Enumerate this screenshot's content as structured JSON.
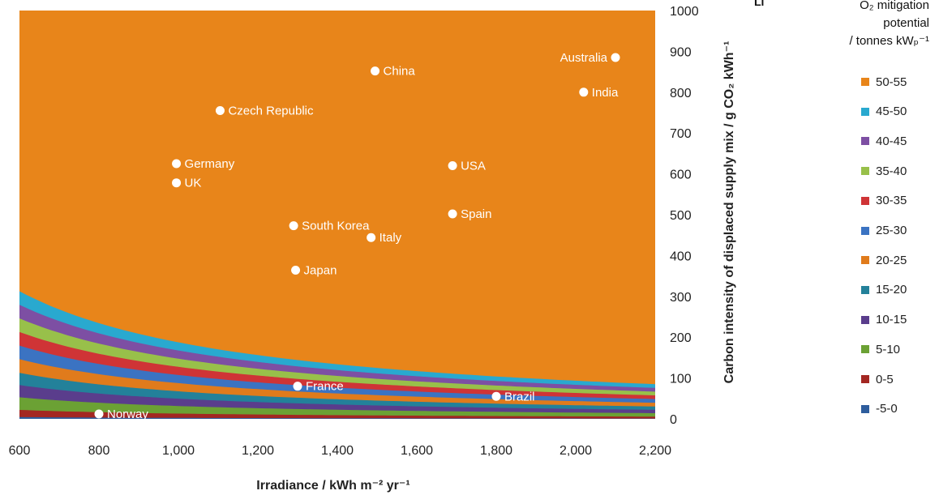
{
  "chart_data": {
    "type": "contour",
    "xlabel": "Irradiance / kWh m⁻² yr⁻¹",
    "ylabel": "Carbon intensity of displaced supply mix / g CO₂ kWh⁻¹",
    "xlim": [
      600,
      2200
    ],
    "ylim": [
      0,
      1000
    ],
    "x_ticks": [
      "600",
      "800",
      "1,000",
      "1,200",
      "1,400",
      "1,600",
      "1,800",
      "2,000",
      "2,200"
    ],
    "y_ticks": [
      "0",
      "100",
      "200",
      "300",
      "400",
      "500",
      "600",
      "700",
      "800",
      "900",
      "1000"
    ],
    "legend": {
      "title_fragment": "Li",
      "title_lines": [
        "O₂ mitigation",
        "potential",
        "/ tonnes kWₚ⁻¹"
      ],
      "placement": "right"
    },
    "bands": [
      {
        "label": "50-55",
        "color": "#e8851a"
      },
      {
        "label": "45-50",
        "color": "#29a9cf"
      },
      {
        "label": "40-45",
        "color": "#7d4fa3"
      },
      {
        "label": "35-40",
        "color": "#98c04a"
      },
      {
        "label": "30-35",
        "color": "#cf3436"
      },
      {
        "label": "25-30",
        "color": "#3b73c2"
      },
      {
        "label": "20-25",
        "color": "#e07b1c"
      },
      {
        "label": "15-20",
        "color": "#23819a"
      },
      {
        "label": "10-15",
        "color": "#5a3d8c"
      },
      {
        "label": "5-10",
        "color": "#6ba134"
      },
      {
        "label": "0-5",
        "color": "#a32722"
      },
      {
        "label": "-5-0",
        "color": "#2e5d9d"
      }
    ],
    "band_boundary_ppg_constants": [
      3,
      13.5,
      32,
      50,
      68,
      88,
      108,
      128,
      148,
      168,
      188
    ],
    "countries": [
      {
        "name": "Australia",
        "x": 2100,
        "y": 885
      },
      {
        "name": "China",
        "x": 1495,
        "y": 852
      },
      {
        "name": "India",
        "x": 2020,
        "y": 800
      },
      {
        "name": "Czech Republic",
        "x": 1105,
        "y": 755
      },
      {
        "name": "Germany",
        "x": 995,
        "y": 625
      },
      {
        "name": "USA",
        "x": 1690,
        "y": 620
      },
      {
        "name": "UK",
        "x": 995,
        "y": 578
      },
      {
        "name": "Spain",
        "x": 1690,
        "y": 502
      },
      {
        "name": "South Korea",
        "x": 1290,
        "y": 473
      },
      {
        "name": "Italy",
        "x": 1485,
        "y": 444
      },
      {
        "name": "Japan",
        "x": 1295,
        "y": 364
      },
      {
        "name": "France",
        "x": 1300,
        "y": 80
      },
      {
        "name": "Brazil",
        "x": 1800,
        "y": 55
      },
      {
        "name": "Norway",
        "x": 800,
        "y": 12
      }
    ]
  }
}
